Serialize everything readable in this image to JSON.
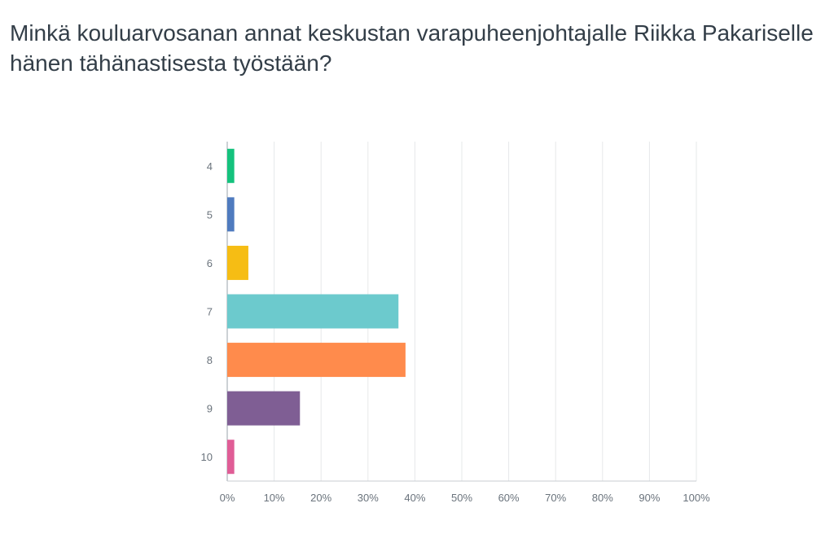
{
  "title": "Minkä kouluarvosanan annat keskustan varapuheenjohtajalle Riikka Pakariselle hänen tähänastisesta työstään?",
  "chart_data": {
    "type": "bar",
    "orientation": "horizontal",
    "title": "Minkä kouluarvosanan annat keskustan varapuheenjohtajalle Riikka Pakariselle hänen tähänastisesta työstään?",
    "xlabel": "",
    "ylabel": "",
    "categories": [
      "4",
      "5",
      "6",
      "7",
      "8",
      "9",
      "10"
    ],
    "values": [
      1.5,
      1.5,
      4.5,
      36.5,
      38.0,
      15.5,
      1.5
    ],
    "value_unit": "%",
    "colors": [
      "#14c27d",
      "#4f7bbf",
      "#f6bd14",
      "#6ccacd",
      "#ff8b4c",
      "#7f5e94",
      "#e05d96"
    ],
    "xlim": [
      0,
      100
    ],
    "xticks": [
      "0%",
      "10%",
      "20%",
      "30%",
      "40%",
      "50%",
      "60%",
      "70%",
      "80%",
      "90%",
      "100%"
    ],
    "grid": "vertical",
    "legend": "none"
  }
}
